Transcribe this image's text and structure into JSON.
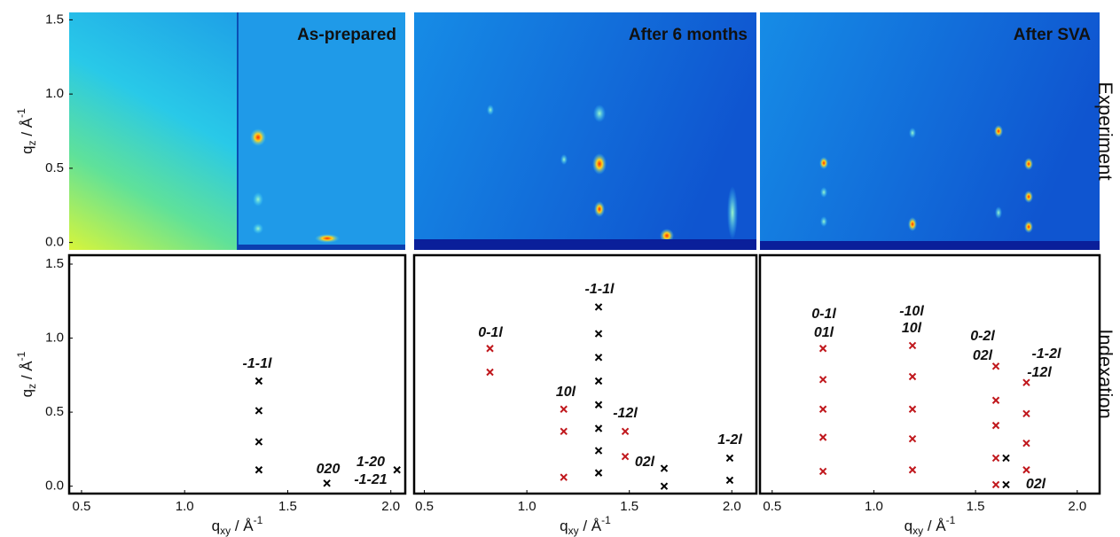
{
  "row_labels": [
    "Experiment",
    "Indexation"
  ],
  "chart_data": [
    {
      "type": "scatter",
      "title": "As-prepared",
      "xlabel": {
        "base": "q",
        "sub": "xy",
        "unit": " / Å",
        "sup": "-1"
      },
      "ylabel": {
        "base": "q",
        "sub": "z",
        "unit": " / Å",
        "sup": "-1"
      },
      "xlim": [
        0.44,
        2.07
      ],
      "xticks": [
        0.5,
        {
          "value": 1,
          "label": "1.0"
        },
        1.5,
        {
          "value": 2,
          "label": "2.0"
        }
      ],
      "ylim": [
        -0.05,
        1.56
      ],
      "yticks": [
        {
          "value": 0,
          "label": "0.0"
        },
        0.5,
        {
          "value": 1,
          "label": "1.0"
        },
        1.5
      ],
      "image_ylim": [
        -0.05,
        1.55
      ],
      "image_yticks": [
        {
          "value": 0,
          "label": "0.0"
        },
        0.5,
        {
          "value": 1,
          "label": "1.0"
        },
        1.5
      ],
      "series": [
        {
          "color": "#000000",
          "x": [
            1.36,
            1.36,
            1.36,
            1.36,
            1.69,
            2.03
          ],
          "values": [
            0.71,
            0.51,
            0.3,
            0.11,
            0.02,
            0.11
          ]
        }
      ],
      "annotations": [
        {
          "text": "-1-1l",
          "color": "#000000"
        },
        {
          "text": "020",
          "color": "#000000"
        },
        {
          "text": "1-20",
          "color": "#000000"
        },
        {
          "text": "-1-21",
          "color": "#000000"
        }
      ]
    },
    {
      "type": "scatter",
      "title": "After 6 months",
      "xlabel": {
        "base": "q",
        "sub": "xy",
        "unit": " / Å",
        "sup": "-1"
      },
      "xlim": [
        0.45,
        2.12
      ],
      "xticks": [
        0.5,
        {
          "value": 1,
          "label": "1.0"
        },
        1.5,
        {
          "value": 2,
          "label": "2.0"
        }
      ],
      "ylim": [
        -0.05,
        1.56
      ],
      "series": [
        {
          "color": "#c0171c",
          "x": [
            0.82,
            0.82,
            1.18,
            1.18,
            1.18,
            1.48,
            1.48
          ],
          "values": [
            0.93,
            0.77,
            0.52,
            0.37,
            0.06,
            0.37,
            0.2
          ]
        },
        {
          "color": "#000000",
          "x": [
            1.35,
            1.35,
            1.35,
            1.35,
            1.35,
            1.35,
            1.35,
            1.35,
            1.67,
            1.67,
            1.99,
            1.99
          ],
          "values": [
            1.21,
            1.03,
            0.87,
            0.71,
            0.55,
            0.39,
            0.24,
            0.09,
            0.12,
            0.0,
            0.19,
            0.04
          ]
        }
      ],
      "annotations": [
        {
          "text": "0-1l",
          "color": "#c0171c"
        },
        {
          "text": "10l",
          "color": "#c0171c"
        },
        {
          "text": "-12l",
          "color": "#c0171c"
        },
        {
          "text": "-1-1l",
          "color": "#000000"
        },
        {
          "text": "02l",
          "color": "#000000"
        },
        {
          "text": "1-2l",
          "color": "#000000"
        }
      ]
    },
    {
      "type": "scatter",
      "title": "After SVA",
      "xlabel": {
        "base": "q",
        "sub": "xy",
        "unit": " / Å",
        "sup": "-1"
      },
      "xlim": [
        0.44,
        2.11
      ],
      "xticks": [
        0.5,
        {
          "value": 1,
          "label": "1.0"
        },
        1.5,
        {
          "value": 2,
          "label": "2.0"
        }
      ],
      "ylim": [
        -0.05,
        1.56
      ],
      "series": [
        {
          "color": "#c0171c",
          "x": [
            0.75,
            0.75,
            0.75,
            0.75,
            0.75,
            1.19,
            1.19,
            1.19,
            1.19,
            1.19,
            1.6,
            1.6,
            1.6,
            1.6,
            1.6,
            1.75,
            1.75,
            1.75,
            1.75
          ],
          "values": [
            0.93,
            0.72,
            0.52,
            0.33,
            0.1,
            0.95,
            0.74,
            0.52,
            0.32,
            0.11,
            0.81,
            0.58,
            0.41,
            0.19,
            0.01,
            0.7,
            0.49,
            0.29,
            0.11
          ]
        },
        {
          "color": "#000000",
          "x": [
            1.65,
            1.65
          ],
          "values": [
            0.19,
            0.01
          ]
        }
      ],
      "annotations": [
        {
          "text": "0-1l",
          "color": "#c0171c"
        },
        {
          "text": "01l",
          "color": "#c0171c"
        },
        {
          "text": "-10l",
          "color": "#c0171c"
        },
        {
          "text": "10l",
          "color": "#c0171c"
        },
        {
          "text": "0-2l",
          "color": "#c0171c"
        },
        {
          "text": "02l",
          "color": "#c0171c"
        },
        {
          "text": "-1-2l",
          "color": "#c0171c"
        },
        {
          "text": "-12l",
          "color": "#c0171c"
        },
        {
          "text": "02l",
          "color": "#000000"
        }
      ]
    }
  ]
}
